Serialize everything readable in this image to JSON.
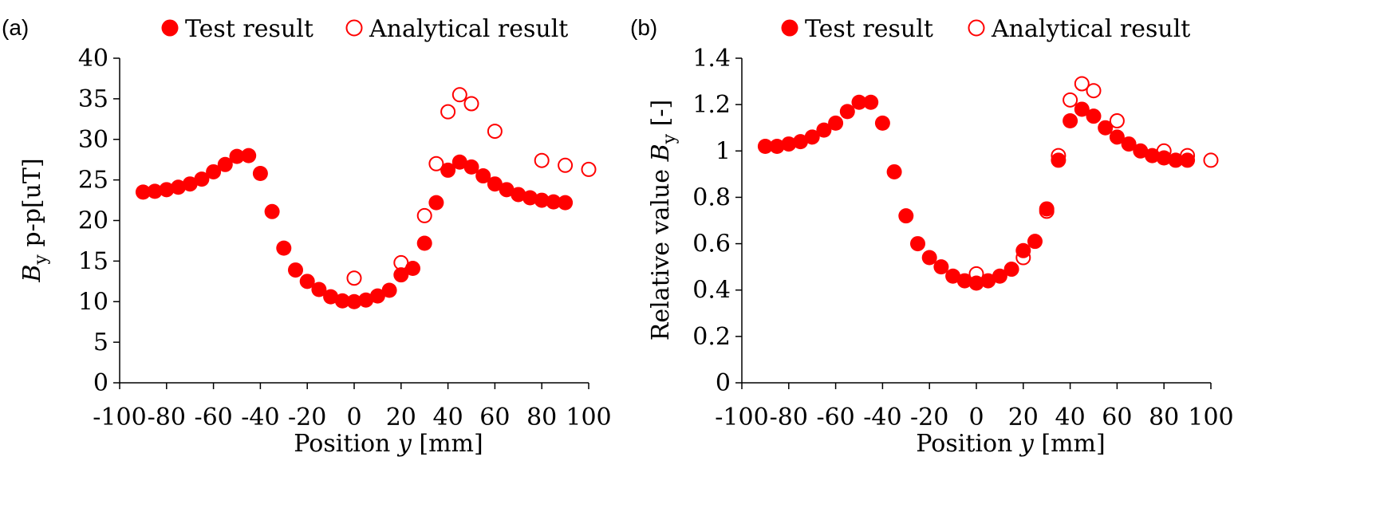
{
  "colors": {
    "marker": "#ff0000",
    "axis": "#000000"
  },
  "chart_data": [
    {
      "type": "scatter",
      "panel_label": "(a)",
      "xlabel": {
        "prefix": "Position ",
        "var": "y",
        "suffix": " [mm]"
      },
      "ylabel": {
        "var": "B",
        "sub": "y",
        "suffix": " p-p[uT]"
      },
      "xlim": [
        -100,
        100
      ],
      "ylim": [
        0,
        40
      ],
      "xticks": [
        -100,
        -80,
        -60,
        -40,
        -20,
        0,
        20,
        40,
        60,
        80,
        100
      ],
      "yticks": [
        0,
        5,
        10,
        15,
        20,
        25,
        30,
        35,
        40
      ],
      "legend_position": "top",
      "series": [
        {
          "name": "Test result",
          "marker": "filled-circle",
          "x": [
            -90,
            -85,
            -80,
            -75,
            -70,
            -65,
            -60,
            -55,
            -50,
            -45,
            -40,
            -35,
            -30,
            -25,
            -20,
            -15,
            -10,
            -5,
            0,
            5,
            10,
            15,
            20,
            25,
            30,
            35,
            40,
            45,
            50,
            55,
            60,
            65,
            70,
            75,
            80,
            85,
            90
          ],
          "y": [
            23.5,
            23.6,
            23.8,
            24.1,
            24.5,
            25.1,
            26.0,
            26.9,
            27.9,
            28.0,
            25.8,
            21.1,
            16.6,
            13.9,
            12.5,
            11.5,
            10.6,
            10.1,
            10.0,
            10.2,
            10.7,
            11.4,
            13.3,
            14.1,
            17.2,
            22.2,
            26.2,
            27.2,
            26.6,
            25.5,
            24.5,
            23.8,
            23.2,
            22.8,
            22.5,
            22.3,
            22.2
          ]
        },
        {
          "name": "Analytical result",
          "marker": "hollow-circle",
          "x": [
            0,
            20,
            30,
            35,
            40,
            45,
            50,
            60,
            80,
            90,
            100
          ],
          "y": [
            12.9,
            14.8,
            20.6,
            27.0,
            33.4,
            35.5,
            34.4,
            31.0,
            27.4,
            26.8,
            26.3
          ]
        }
      ]
    },
    {
      "type": "scatter",
      "panel_label": "(b)",
      "xlabel": {
        "prefix": "Position ",
        "var": "y",
        "suffix": " [mm]"
      },
      "ylabel": {
        "prefix": "Relative value ",
        "var": "B",
        "sub": "y",
        "suffix": " [-]"
      },
      "xlim": [
        -100,
        100
      ],
      "ylim": [
        0,
        1.4
      ],
      "xticks": [
        -100,
        -80,
        -60,
        -40,
        -20,
        0,
        20,
        40,
        60,
        80,
        100
      ],
      "yticks": [
        0,
        0.2,
        0.4,
        0.6,
        0.8,
        1,
        1.2,
        1.4
      ],
      "legend_position": "top",
      "series": [
        {
          "name": "Test result",
          "marker": "filled-circle",
          "x": [
            -90,
            -85,
            -80,
            -75,
            -70,
            -65,
            -60,
            -55,
            -50,
            -45,
            -40,
            -35,
            -30,
            -25,
            -20,
            -15,
            -10,
            -5,
            0,
            5,
            10,
            15,
            20,
            25,
            30,
            35,
            40,
            45,
            50,
            55,
            60,
            65,
            70,
            75,
            80,
            85,
            90
          ],
          "y": [
            1.02,
            1.02,
            1.03,
            1.04,
            1.06,
            1.09,
            1.12,
            1.17,
            1.21,
            1.21,
            1.12,
            0.91,
            0.72,
            0.6,
            0.54,
            0.5,
            0.46,
            0.44,
            0.43,
            0.44,
            0.46,
            0.49,
            0.57,
            0.61,
            0.75,
            0.96,
            1.13,
            1.18,
            1.15,
            1.1,
            1.06,
            1.03,
            1.0,
            0.98,
            0.97,
            0.96,
            0.96
          ]
        },
        {
          "name": "Analytical result",
          "marker": "hollow-circle",
          "x": [
            0,
            20,
            30,
            35,
            40,
            45,
            50,
            60,
            80,
            90,
            100
          ],
          "y": [
            0.47,
            0.54,
            0.74,
            0.98,
            1.22,
            1.29,
            1.26,
            1.13,
            1.0,
            0.98,
            0.96
          ]
        }
      ]
    }
  ]
}
